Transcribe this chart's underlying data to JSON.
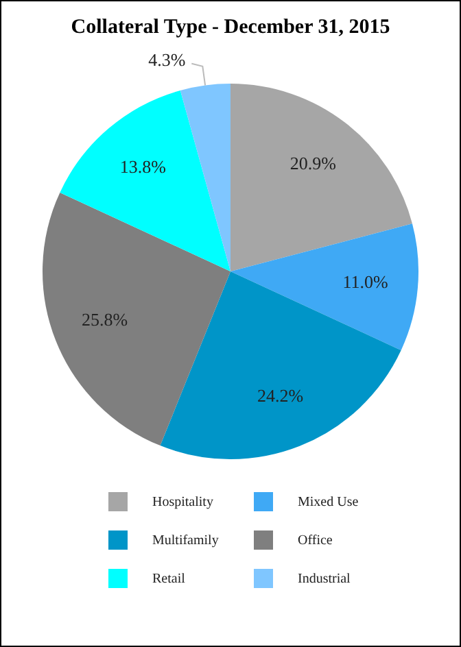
{
  "chart_data": {
    "type": "pie",
    "title": "Collateral Type - December 31, 2015",
    "categories": [
      "Hospitality",
      "Mixed Use",
      "Multifamily",
      "Office",
      "Retail",
      "Industrial"
    ],
    "values": [
      20.9,
      11.0,
      24.2,
      25.8,
      13.8,
      4.3
    ],
    "value_labels": [
      "20.9%",
      "11.0%",
      "24.2%",
      "25.8%",
      "13.8%",
      "4.3%"
    ],
    "colors": [
      "#a6a6a6",
      "#3fa9f5",
      "#0095c8",
      "#7f7f7f",
      "#00ffff",
      "#7fc6ff"
    ],
    "legend": "bottom"
  }
}
